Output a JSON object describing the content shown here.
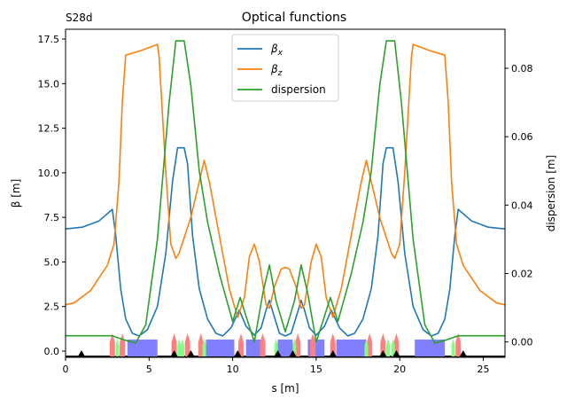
{
  "chart_data": {
    "type": "line",
    "title": "Optical functions",
    "corner_label": "S28d",
    "xlabel": "s [m]",
    "ylabel": "β [m]",
    "ylabel2": "dispersion [m]",
    "xlim": [
      0,
      26.3
    ],
    "ylim": [
      -0.35,
      18.05
    ],
    "ylim2": [
      -0.0045,
      0.0914
    ],
    "xticks": [
      "0",
      "5",
      "10",
      "15",
      "20",
      "25"
    ],
    "yticks": [
      "0.0",
      "2.5",
      "5.0",
      "7.5",
      "10.0",
      "12.5",
      "15.0",
      "17.5"
    ],
    "yticks2": [
      "0.00",
      "0.02",
      "0.04",
      "0.06",
      "0.08"
    ],
    "legend_position": "top-center",
    "symmetry_center": 13.15,
    "series": [
      {
        "name": "βx",
        "legend": "β",
        "sub": "x",
        "color": "#1f77b4",
        "axis": "left",
        "half": [
          [
            0,
            6.85
          ],
          [
            1,
            6.95
          ],
          [
            2,
            7.3
          ],
          [
            2.8,
            7.95
          ],
          [
            3.0,
            6.5
          ],
          [
            3.3,
            3.5
          ],
          [
            3.6,
            1.8
          ],
          [
            4.0,
            1.0
          ],
          [
            4.4,
            0.85
          ],
          [
            4.9,
            1.2
          ],
          [
            5.5,
            2.5
          ],
          [
            6.0,
            5.5
          ],
          [
            6.4,
            9.5
          ],
          [
            6.7,
            11.4
          ],
          [
            7.1,
            11.4
          ],
          [
            7.3,
            10.5
          ],
          [
            7.6,
            6.5
          ],
          [
            8.0,
            3.5
          ],
          [
            8.5,
            1.8
          ],
          [
            9.0,
            1.0
          ],
          [
            9.4,
            0.85
          ],
          [
            9.9,
            1.3
          ],
          [
            10.4,
            2.3
          ],
          [
            10.8,
            1.4
          ],
          [
            11.3,
            0.9
          ],
          [
            11.7,
            1.3
          ],
          [
            12.0,
            2.3
          ],
          [
            12.2,
            2.85
          ],
          [
            12.4,
            2.2
          ],
          [
            12.8,
            1.0
          ],
          [
            13.15,
            0.85
          ]
        ]
      },
      {
        "name": "βz",
        "legend": "β",
        "sub": "z",
        "color": "#ff7f0e",
        "axis": "left",
        "half": [
          [
            0,
            2.6
          ],
          [
            0.5,
            2.7
          ],
          [
            1.5,
            3.4
          ],
          [
            2.5,
            4.8
          ],
          [
            2.9,
            6.0
          ],
          [
            3.2,
            9.5
          ],
          [
            3.4,
            14
          ],
          [
            3.6,
            16.6
          ],
          [
            4.5,
            16.85
          ],
          [
            5.5,
            17.2
          ],
          [
            5.6,
            16.5
          ],
          [
            6.0,
            10
          ],
          [
            6.3,
            6
          ],
          [
            6.6,
            5.2
          ],
          [
            6.8,
            5.5
          ],
          [
            7.5,
            7.5
          ],
          [
            8.0,
            9.5
          ],
          [
            8.3,
            10.7
          ],
          [
            8.6,
            9.5
          ],
          [
            9.2,
            6.5
          ],
          [
            9.8,
            3.5
          ],
          [
            10.3,
            1.9
          ],
          [
            10.7,
            3.0
          ],
          [
            11.0,
            5.3
          ],
          [
            11.3,
            6.0
          ],
          [
            11.6,
            5.0
          ],
          [
            12.0,
            2.6
          ],
          [
            12.2,
            2.4
          ],
          [
            12.5,
            3.6
          ],
          [
            12.9,
            4.6
          ],
          [
            13.15,
            4.7
          ]
        ]
      },
      {
        "name": "dispersion",
        "legend": "dispersion",
        "sub": "",
        "color": "#2ca02c",
        "axis": "right",
        "half": [
          [
            0,
            0.0018
          ],
          [
            2.8,
            0.0018
          ],
          [
            3.5,
            0.0006
          ],
          [
            4.2,
            -0.0003
          ],
          [
            4.8,
            0.005
          ],
          [
            5.5,
            0.03
          ],
          [
            6.2,
            0.07
          ],
          [
            6.6,
            0.088
          ],
          [
            7.1,
            0.088
          ],
          [
            7.5,
            0.075
          ],
          [
            8.0,
            0.05
          ],
          [
            8.5,
            0.035
          ],
          [
            9.2,
            0.02
          ],
          [
            10.0,
            0.006
          ],
          [
            10.45,
            0.013
          ],
          [
            10.9,
            0.006
          ],
          [
            11.3,
            0.0
          ],
          [
            11.8,
            0.014
          ],
          [
            12.2,
            0.0225
          ],
          [
            12.6,
            0.012
          ],
          [
            13.15,
            0.003
          ]
        ]
      }
    ],
    "lattice": {
      "dipoles": [
        [
          3.7,
          5.5
        ],
        [
          8.4,
          10.1
        ],
        [
          10.8,
          11.8
        ],
        [
          12.7,
          13.6
        ],
        [
          14.5,
          15.5
        ],
        [
          16.2,
          18.0
        ],
        [
          20.9,
          22.7
        ]
      ],
      "quads": [
        2.8,
        3.4,
        6.5,
        7.3,
        8.1,
        10.5,
        11.8,
        13.9,
        14.8,
        16.0,
        18.2,
        19.0,
        19.8,
        23.5
      ],
      "sextupoles": [
        3.1,
        6.8,
        7.0,
        8.3,
        12.6,
        13.7,
        18.0,
        19.3,
        19.6,
        23.2
      ],
      "markers": [
        0.95,
        6.5,
        7.5,
        10.3,
        12.7,
        13.6,
        16.0,
        19.0,
        19.8,
        23.8
      ],
      "colors": {
        "dipole": "#8080ff",
        "quad": "#ff8080",
        "sext": "#80ff80",
        "marker": "#000000"
      }
    }
  }
}
